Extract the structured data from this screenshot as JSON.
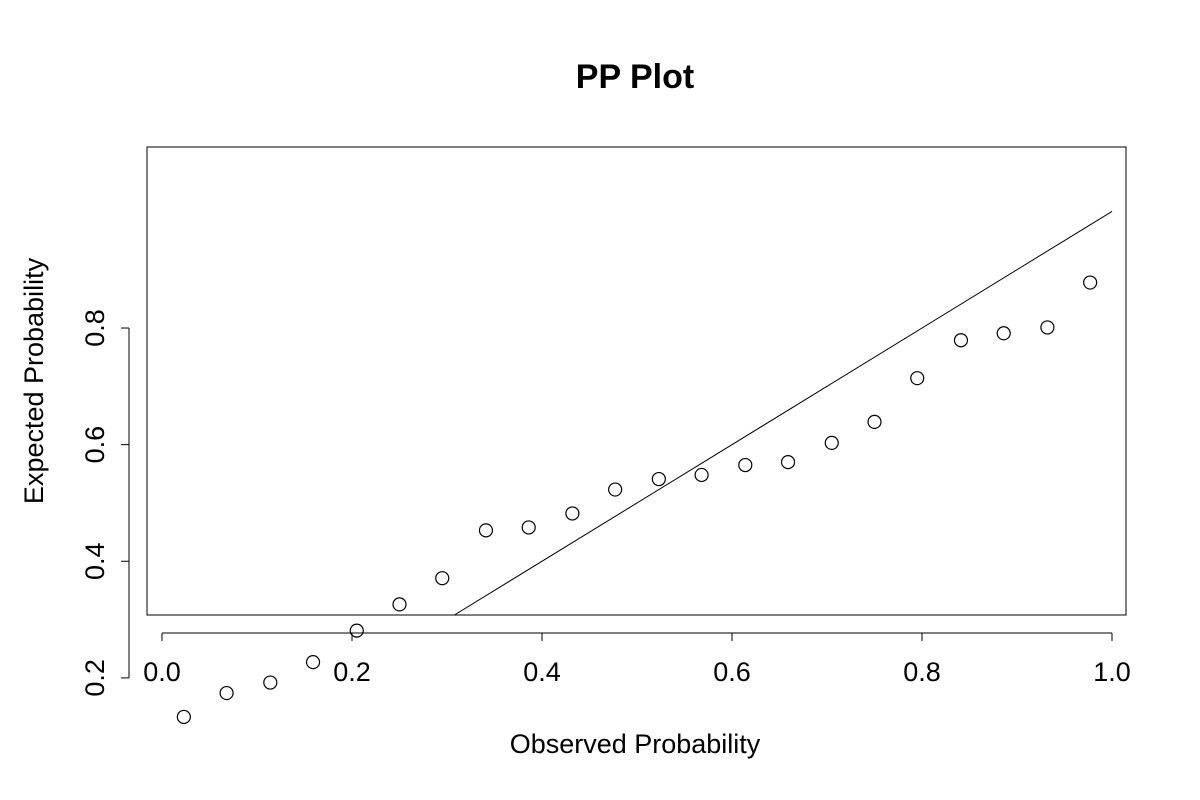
{
  "chart_data": {
    "type": "scatter",
    "title": "PP Plot",
    "xlabel": "Observed Probability",
    "ylabel": "Expected Probability",
    "xlim": [
      0.0,
      1.0
    ],
    "ylim": [
      0.1,
      0.9
    ],
    "x_ticks": [
      "0.0",
      "0.2",
      "0.4",
      "0.6",
      "0.8",
      "1.0"
    ],
    "y_ticks": [
      "0.2",
      "0.4",
      "0.6",
      "0.8"
    ],
    "grid": false,
    "legend": "none",
    "point_style": "open-circle",
    "reference_line": {
      "intercept": 0,
      "slope": 1
    },
    "series": [
      {
        "x": [
          0.023,
          0.068,
          0.114,
          0.159,
          0.205,
          0.25,
          0.295,
          0.341,
          0.386,
          0.432,
          0.477,
          0.523,
          0.568,
          0.614,
          0.659,
          0.705,
          0.75,
          0.795,
          0.841,
          0.886,
          0.932,
          0.977
        ],
        "y": [
          0.133,
          0.174,
          0.192,
          0.227,
          0.281,
          0.326,
          0.371,
          0.453,
          0.458,
          0.482,
          0.523,
          0.541,
          0.548,
          0.565,
          0.57,
          0.603,
          0.639,
          0.714,
          0.779,
          0.791,
          0.801,
          0.878
        ]
      }
    ]
  }
}
